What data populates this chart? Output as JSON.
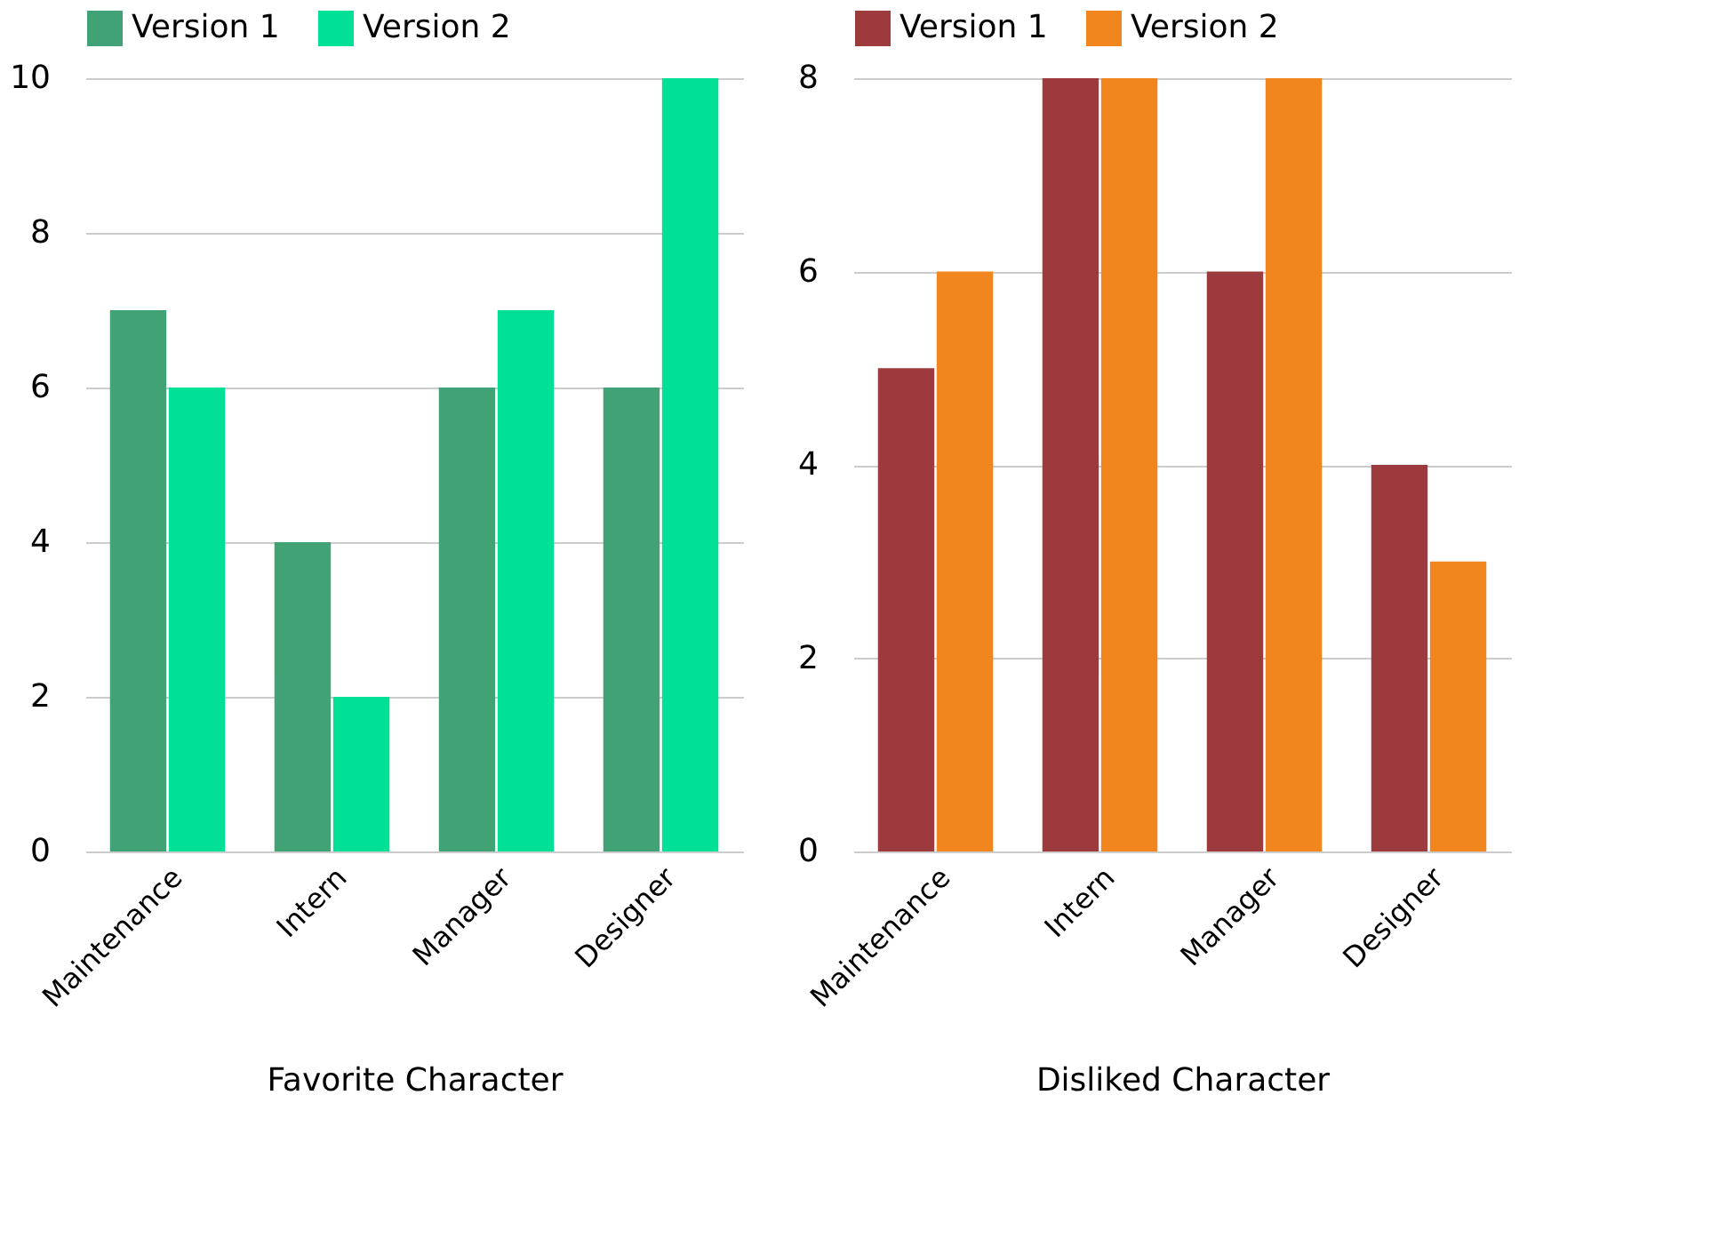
{
  "chart_data": [
    {
      "type": "bar",
      "xlabel": "Favorite Character",
      "categories": [
        "Maintenance",
        "Intern",
        "Manager",
        "Designer"
      ],
      "series": [
        {
          "name": "Version 1",
          "color": "#41a275",
          "values": [
            7,
            4,
            6,
            6
          ]
        },
        {
          "name": "Version 2",
          "color": "#00e096",
          "values": [
            6,
            2,
            7,
            10
          ]
        }
      ],
      "ylim": [
        0,
        10
      ],
      "yticks": [
        0,
        2,
        4,
        6,
        8,
        10
      ],
      "grid": "y",
      "legend": "top"
    },
    {
      "type": "bar",
      "xlabel": "Disliked Character",
      "categories": [
        "Maintenance",
        "Intern",
        "Manager",
        "Designer"
      ],
      "series": [
        {
          "name": "Version 1",
          "color": "#9c3a3e",
          "values": [
            5,
            8,
            6,
            4
          ]
        },
        {
          "name": "Version 2",
          "color": "#f1861f",
          "values": [
            6,
            8,
            8,
            3
          ]
        }
      ],
      "ylim": [
        0,
        8
      ],
      "yticks": [
        0,
        2,
        4,
        6,
        8
      ],
      "grid": "y",
      "legend": "top"
    }
  ]
}
